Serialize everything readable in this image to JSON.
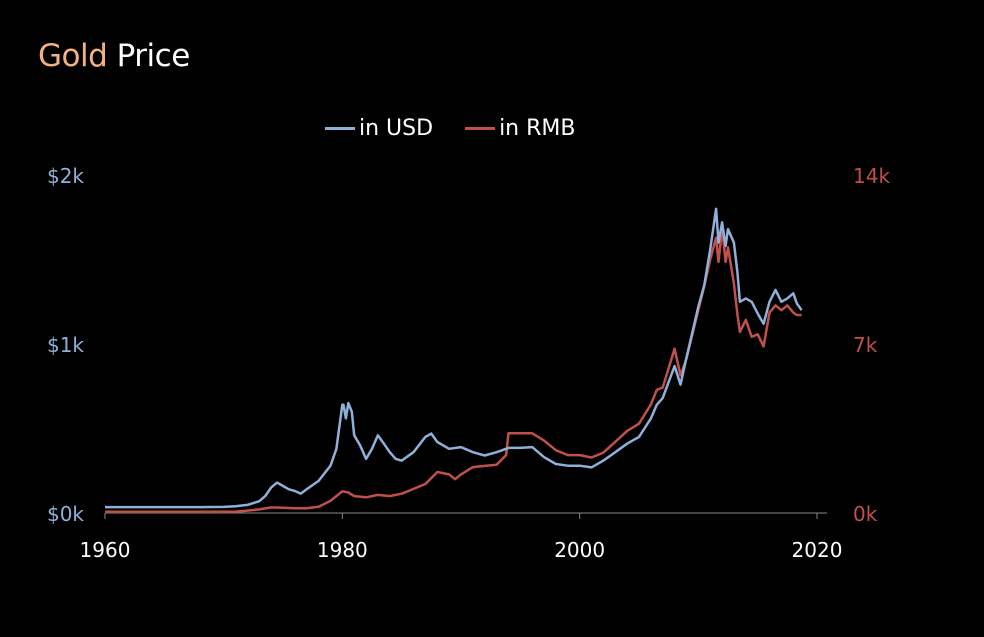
{
  "title": {
    "word1": "Gold",
    "word2": "Price"
  },
  "colors": {
    "usd": "#8fb0d8",
    "rmb": "#c0504d",
    "title_accent": "#f4b183",
    "axis": "#888888",
    "text": "#ffffff"
  },
  "chart_data": {
    "type": "line",
    "title": "Gold Price",
    "xlabel": "",
    "ylabel_left": "",
    "ylabel_right": "",
    "xlim": [
      1960,
      2020
    ],
    "ylim_left": [
      0,
      2000
    ],
    "ylim_right": [
      0,
      14000
    ],
    "x_ticks": [
      "1960",
      "1980",
      "2000",
      "2020"
    ],
    "y_ticks_left": [
      "$0k",
      "$1k",
      "$2k"
    ],
    "y_ticks_right": [
      "0k",
      "7k",
      "14k"
    ],
    "legend": [
      "in USD",
      "in RMB"
    ],
    "series": [
      {
        "name": "in USD",
        "axis": "left",
        "x": [
          1960,
          1968,
          1970,
          1971,
          1972,
          1973,
          1973.5,
          1974,
          1974.5,
          1975,
          1975.5,
          1976,
          1976.5,
          1977,
          1978,
          1979,
          1979.5,
          1980,
          1980.1,
          1980.3,
          1980.5,
          1980.8,
          1981,
          1981.5,
          1982,
          1982.5,
          1983,
          1983.5,
          1984,
          1984.5,
          1985,
          1986,
          1987,
          1987.5,
          1988,
          1989,
          1990,
          1991,
          1992,
          1993,
          1994,
          1995,
          1996,
          1997,
          1998,
          1999,
          2000,
          2001,
          2002,
          2003,
          2004,
          2005,
          2006,
          2006.5,
          2007,
          2008,
          2008.5,
          2009,
          2010,
          2010.5,
          2011,
          2011.5,
          2011.7,
          2012,
          2012.3,
          2012.5,
          2013,
          2013.3,
          2013.5,
          2014,
          2014.5,
          2015,
          2015.5,
          2016,
          2016.5,
          2017,
          2017.5,
          2018,
          2018.3,
          2018.7
        ],
        "values": [
          35,
          35,
          36,
          40,
          48,
          70,
          100,
          150,
          180,
          160,
          140,
          130,
          115,
          140,
          190,
          280,
          380,
          640,
          640,
          560,
          650,
          600,
          460,
          400,
          320,
          380,
          460,
          410,
          360,
          320,
          310,
          360,
          450,
          470,
          420,
          380,
          390,
          360,
          340,
          360,
          385,
          385,
          390,
          330,
          290,
          280,
          280,
          270,
          310,
          360,
          410,
          450,
          560,
          640,
          680,
          870,
          760,
          920,
          1220,
          1350,
          1560,
          1800,
          1600,
          1720,
          1580,
          1680,
          1600,
          1420,
          1250,
          1270,
          1250,
          1180,
          1120,
          1250,
          1320,
          1250,
          1270,
          1300,
          1240,
          1200
        ]
      },
      {
        "name": "in RMB",
        "axis": "right",
        "x": [
          1960,
          1968,
          1970,
          1971,
          1972,
          1973,
          1974,
          1975,
          1976,
          1977,
          1978,
          1979,
          1979.5,
          1980,
          1980.5,
          1981,
          1982,
          1983,
          1984,
          1985,
          1986,
          1987,
          1988,
          1989,
          1989.5,
          1990,
          1991,
          1992,
          1993,
          1993.8,
          1994,
          1995,
          1996,
          1997,
          1998,
          1999,
          2000,
          2001,
          2002,
          2003,
          2004,
          2005,
          2006,
          2006.5,
          2007,
          2008,
          2008.5,
          2009,
          2010,
          2010.5,
          2011,
          2011.5,
          2011.7,
          2012,
          2012.3,
          2012.5,
          2013,
          2013.3,
          2013.5,
          2014,
          2014.5,
          2015,
          2015.5,
          2016,
          2016.5,
          2017,
          2017.5,
          2018,
          2018.3,
          2018.7
        ],
        "values": [
          50,
          50,
          55,
          60,
          100,
          150,
          230,
          220,
          200,
          200,
          260,
          500,
          700,
          900,
          850,
          700,
          650,
          750,
          700,
          800,
          1000,
          1200,
          1700,
          1600,
          1400,
          1600,
          1900,
          1950,
          2000,
          2400,
          3300,
          3300,
          3300,
          3000,
          2600,
          2400,
          2400,
          2300,
          2500,
          2950,
          3400,
          3700,
          4500,
          5100,
          5200,
          6800,
          5700,
          6400,
          8400,
          9400,
          10500,
          11400,
          10400,
          11800,
          10400,
          11000,
          9500,
          8200,
          7500,
          8000,
          7300,
          7400,
          6900,
          8300,
          8600,
          8400,
          8600,
          8300,
          8200,
          8200
        ]
      }
    ]
  }
}
